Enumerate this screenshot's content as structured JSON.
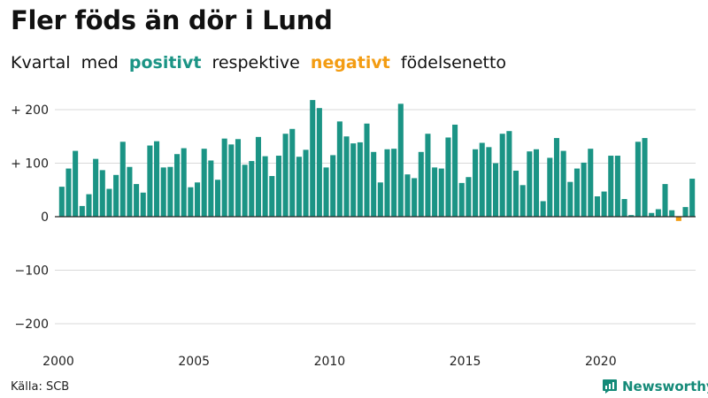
{
  "title": "Fler föds än dör i Lund",
  "subtitle": {
    "part1": "Kvartal med",
    "positive_word": "positivt",
    "part2": "respektive",
    "negative_word": "negativt",
    "part3": "födelsenetto"
  },
  "colors": {
    "positive": "#1b9485",
    "negative": "#f39c12",
    "grid": "#d9d9d9",
    "zero_line": "#222222"
  },
  "source": "Källa: SCB",
  "brand": {
    "name": "Newsworthy",
    "icon": "newsworthy-logo-icon",
    "color": "#148a78"
  },
  "chart_data": {
    "type": "bar",
    "xlabel": "",
    "ylabel": "",
    "ylim": [
      -200,
      225
    ],
    "yticks": [
      {
        "value": 200,
        "label": "+ 200"
      },
      {
        "value": 100,
        "label": "+ 100"
      },
      {
        "value": 0,
        "label": "0"
      },
      {
        "value": -100,
        "label": "−100"
      },
      {
        "value": -200,
        "label": "−200"
      }
    ],
    "xtick_labels": [
      "2000",
      "2005",
      "2010",
      "2015",
      "2020"
    ],
    "grid": true,
    "legend": "none",
    "start_year": 2000,
    "quarters_per_year": 4,
    "values": [
      56,
      90,
      123,
      20,
      42,
      108,
      87,
      52,
      78,
      140,
      93,
      61,
      45,
      133,
      141,
      92,
      93,
      117,
      128,
      55,
      64,
      127,
      105,
      69,
      146,
      135,
      145,
      97,
      104,
      149,
      113,
      76,
      114,
      155,
      164,
      112,
      125,
      218,
      203,
      92,
      115,
      178,
      150,
      137,
      139,
      174,
      121,
      64,
      126,
      127,
      211,
      79,
      72,
      121,
      155,
      92,
      90,
      148,
      172,
      63,
      74,
      126,
      138,
      130,
      100,
      155,
      160,
      86,
      59,
      122,
      126,
      29,
      110,
      147,
      123,
      65,
      90,
      101,
      127,
      38,
      47,
      114,
      114,
      33,
      3,
      140,
      147,
      7,
      14,
      61,
      12,
      -8,
      18,
      71
    ]
  }
}
